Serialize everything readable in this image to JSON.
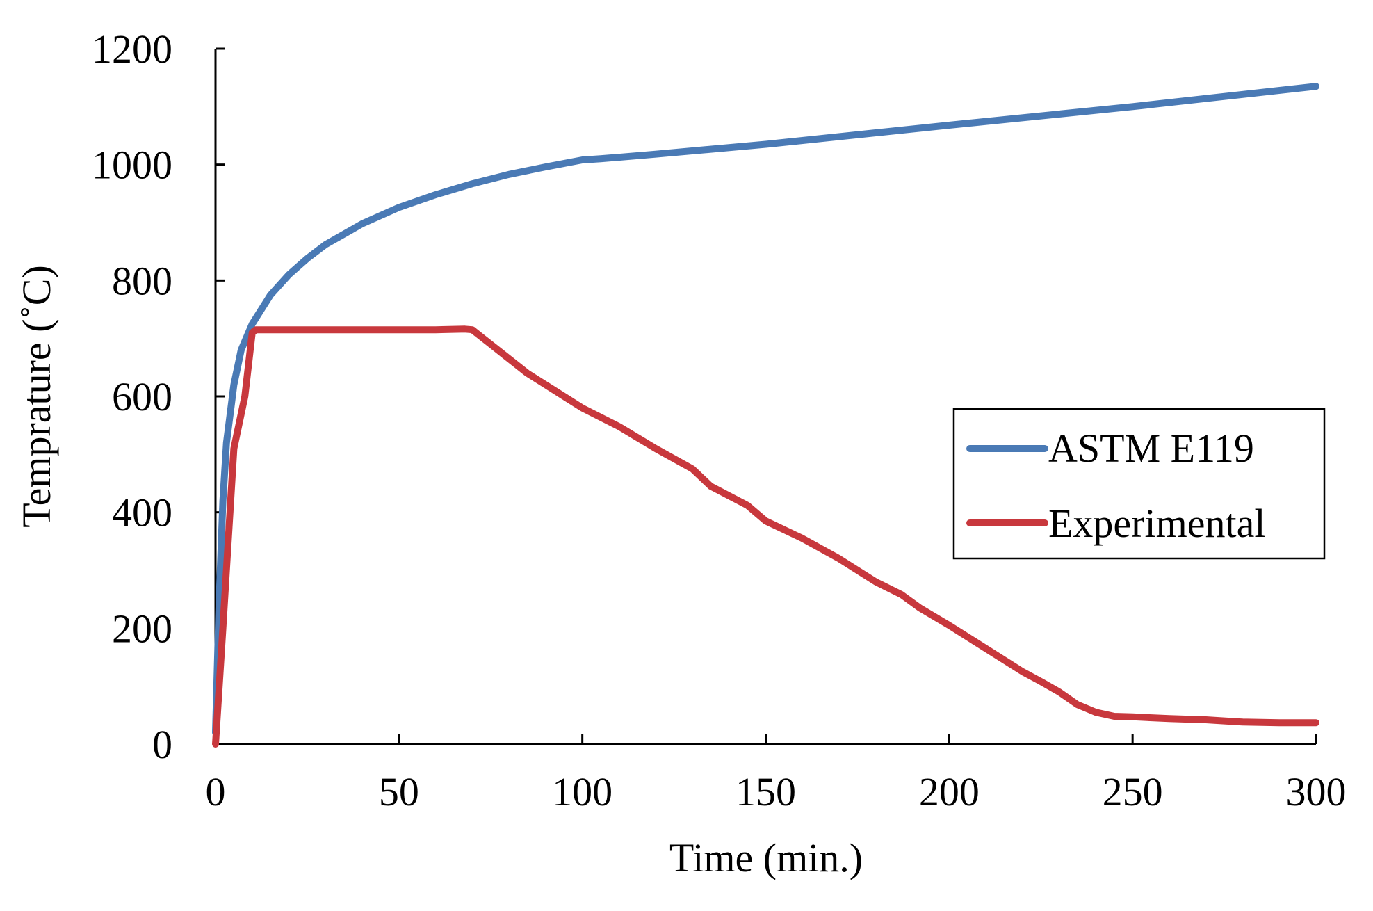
{
  "chart_data": {
    "type": "line",
    "title": "",
    "xlabel": "Time (min.)",
    "ylabel": "Temprature (˚C)",
    "xlim": [
      0,
      300
    ],
    "ylim": [
      0,
      1200
    ],
    "xticks": [
      "0",
      "50",
      "100",
      "150",
      "200",
      "250",
      "300"
    ],
    "yticks": [
      "0",
      "200",
      "400",
      "600",
      "800",
      "1000",
      "1200"
    ],
    "grid": false,
    "legend_position": "right",
    "series": [
      {
        "name": "ASTM E119",
        "color": "#4a7ab5",
        "x": [
          0,
          1,
          2,
          3,
          5,
          7,
          10,
          15,
          20,
          25,
          30,
          40,
          50,
          60,
          70,
          80,
          90,
          100,
          105,
          120,
          150,
          200,
          250,
          300
        ],
        "y": [
          20,
          250,
          420,
          520,
          620,
          680,
          725,
          775,
          810,
          838,
          862,
          898,
          926,
          948,
          967,
          983,
          996,
          1008,
          1010,
          1018,
          1035,
          1068,
          1100,
          1135
        ]
      },
      {
        "name": "Experimental",
        "color": "#c8383d",
        "x": [
          0,
          2,
          5,
          8,
          10,
          11,
          20,
          40,
          60,
          68,
          70,
          72,
          75,
          80,
          85,
          90,
          95,
          100,
          110,
          120,
          130,
          135,
          145,
          150,
          160,
          170,
          180,
          187,
          192,
          200,
          210,
          220,
          225,
          230,
          235,
          240,
          245,
          250,
          260,
          270,
          280,
          290,
          300
        ],
        "y": [
          0,
          200,
          510,
          600,
          710,
          715,
          715,
          715,
          715,
          716,
          715,
          705,
          690,
          665,
          640,
          620,
          600,
          580,
          548,
          510,
          475,
          445,
          412,
          385,
          355,
          320,
          280,
          258,
          235,
          205,
          165,
          125,
          108,
          90,
          68,
          55,
          48,
          47,
          44,
          42,
          38,
          37,
          37
        ]
      }
    ]
  }
}
